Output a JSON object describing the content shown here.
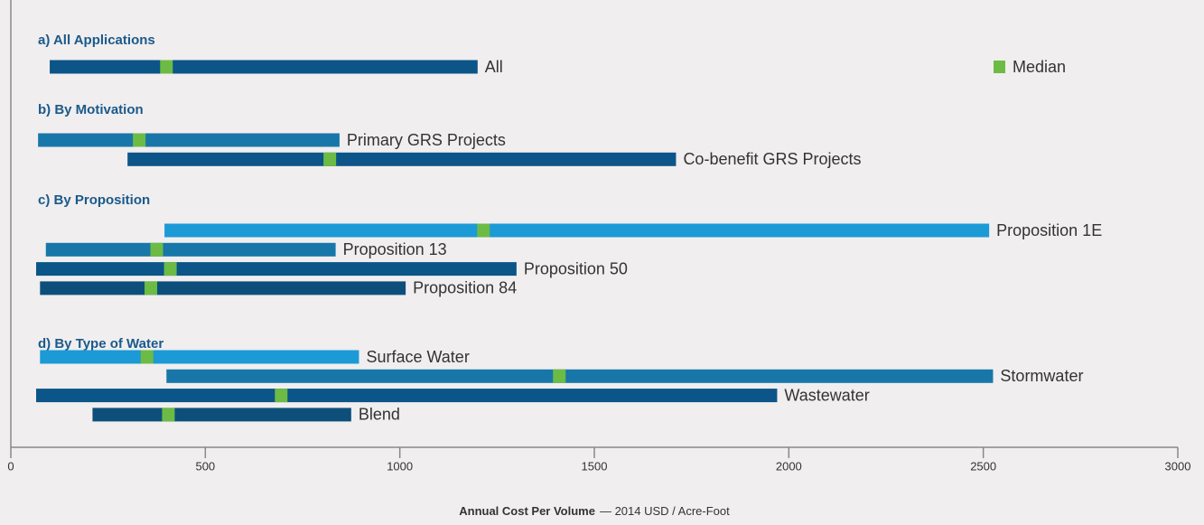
{
  "chart_data": {
    "type": "range-bar",
    "xlabel": {
      "main": "Annual Cost Per Volume",
      "unit": "— 2014 USD / Acre-Foot"
    },
    "xlim": [
      0,
      3000
    ],
    "xticks": [
      0,
      500,
      1000,
      1500,
      2000,
      2500,
      3000
    ],
    "legend": {
      "label": "Median",
      "color": "#6cbb45",
      "position": "upper right"
    },
    "median_color": "#6cbb45",
    "groups": [
      {
        "title": "a) All Applications",
        "items": [
          {
            "name": "All",
            "low": 100,
            "high": 1200,
            "median": 400,
            "color": "#0b5588"
          }
        ]
      },
      {
        "title": "b) By Motivation",
        "items": [
          {
            "name": "Primary GRS Projects",
            "low": 70,
            "high": 845,
            "median": 330,
            "color": "#1877a8"
          },
          {
            "name": "Co-benefit GRS Projects",
            "low": 300,
            "high": 1710,
            "median": 820,
            "color": "#0b5588"
          }
        ]
      },
      {
        "title": "c) By Proposition",
        "items": [
          {
            "name": "Proposition 1E",
            "low": 395,
            "high": 2515,
            "median": 1215,
            "color": "#1b9ad6"
          },
          {
            "name": "Proposition 13",
            "low": 90,
            "high": 835,
            "median": 375,
            "color": "#1877a8"
          },
          {
            "name": "Proposition 50",
            "low": 65,
            "high": 1300,
            "median": 410,
            "color": "#0b5588"
          },
          {
            "name": "Proposition 84",
            "low": 75,
            "high": 1015,
            "median": 360,
            "color": "#0d4f7a"
          }
        ]
      },
      {
        "title": "d) By Type of Water",
        "items": [
          {
            "name": "Surface Water",
            "low": 75,
            "high": 895,
            "median": 350,
            "color": "#1b9ad6"
          },
          {
            "name": "Stormwater",
            "low": 400,
            "high": 2525,
            "median": 1410,
            "color": "#1877a8"
          },
          {
            "name": "Wastewater",
            "low": 65,
            "high": 1970,
            "median": 695,
            "color": "#0b5588"
          },
          {
            "name": "Blend",
            "low": 210,
            "high": 875,
            "median": 405,
            "color": "#0d4f7a"
          }
        ]
      }
    ]
  }
}
